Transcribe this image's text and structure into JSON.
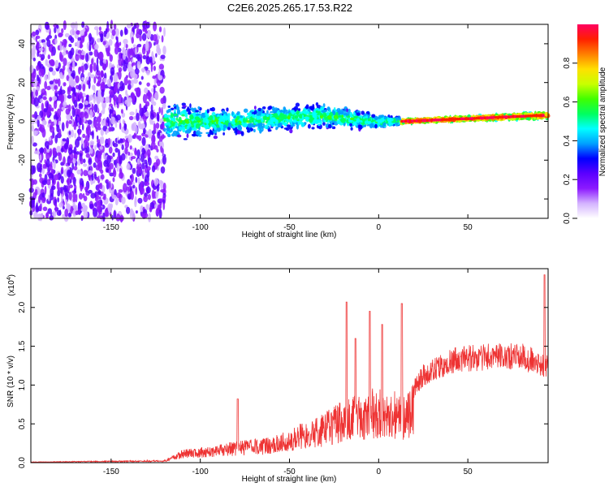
{
  "title": "C2E6.2025.265.17.53.R22",
  "chart_data": [
    {
      "type": "heatmap",
      "xlabel": "Height of straight line (km)",
      "ylabel": "Frequency (Hz)",
      "xlim": [
        -195,
        95
      ],
      "ylim": [
        -50,
        50
      ],
      "x_ticks": [
        -150,
        -100,
        -50,
        0,
        50
      ],
      "y_ticks": [
        -40,
        -20,
        0,
        20,
        40
      ],
      "colorbar": {
        "label": "Normalized spectral amplitude",
        "range": [
          0,
          1
        ],
        "ticks": [
          0.0,
          0.2,
          0.4,
          0.6,
          0.8
        ],
        "colors": [
          "#ffffff",
          "#d4b3ff",
          "#8c1aff",
          "#5b00ff",
          "#0000ff",
          "#00a0ff",
          "#00ffff",
          "#00ff60",
          "#40ff00",
          "#c8ff00",
          "#ffe000",
          "#ff8000",
          "#ff2000",
          "#ff0060"
        ]
      },
      "signal_profile": [
        {
          "x": -120,
          "f": 0,
          "spread": 12
        },
        {
          "x": -80,
          "f": 0,
          "spread": 8
        },
        {
          "x": -35,
          "f": 3,
          "spread": 8
        },
        {
          "x": 0,
          "f": 0,
          "spread": 5
        },
        {
          "x": 15,
          "f": 0,
          "spread": 1
        },
        {
          "x": 90,
          "f": 3,
          "spread": 2
        }
      ]
    },
    {
      "type": "line",
      "xlabel": "Height of straight line (km)",
      "ylabel": "SNR (10 * v/v)",
      "scale_note": "(x10",
      "scale_exp": "4",
      "xlim": [
        -195,
        95
      ],
      "ylim": [
        0,
        2.5
      ],
      "x_ticks": [
        -150,
        -100,
        -50,
        0,
        50
      ],
      "y_ticks": [
        0.0,
        0.5,
        1.0,
        1.5,
        2.0
      ],
      "color": "#ee3333",
      "envelope": [
        {
          "x": -195,
          "y": 0.01
        },
        {
          "x": -120,
          "y": 0.03
        },
        {
          "x": -110,
          "y": 0.15
        },
        {
          "x": -80,
          "y": 0.25
        },
        {
          "x": -60,
          "y": 0.3
        },
        {
          "x": -45,
          "y": 0.45
        },
        {
          "x": -30,
          "y": 0.6
        },
        {
          "x": -15,
          "y": 0.8
        },
        {
          "x": 0,
          "y": 0.9
        },
        {
          "x": 15,
          "y": 0.8
        },
        {
          "x": 25,
          "y": 1.15
        },
        {
          "x": 40,
          "y": 1.35
        },
        {
          "x": 60,
          "y": 1.4
        },
        {
          "x": 80,
          "y": 1.4
        },
        {
          "x": 92,
          "y": 1.3
        }
      ],
      "peaks": [
        {
          "x": -79,
          "y": 0.82
        },
        {
          "x": -18,
          "y": 2.07
        },
        {
          "x": -13,
          "y": 1.6
        },
        {
          "x": -5,
          "y": 1.95
        },
        {
          "x": 2,
          "y": 1.78
        },
        {
          "x": 13,
          "y": 2.05
        },
        {
          "x": 93,
          "y": 2.42
        }
      ]
    }
  ]
}
